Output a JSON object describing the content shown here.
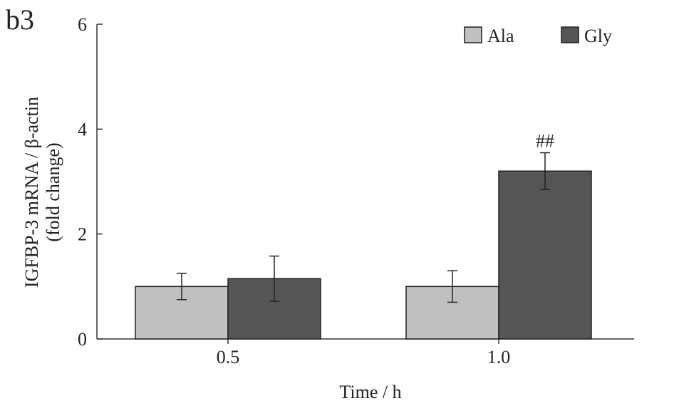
{
  "panel_label": "b3",
  "chart_data": {
    "type": "bar",
    "xlabel": "Time / h",
    "ylabel_line1": "IGFBP-3 mRNA / β-actin",
    "ylabel_line2": "(fold change)",
    "ylim": [
      0,
      6
    ],
    "yticks": [
      "0",
      "2",
      "4",
      "6"
    ],
    "categories": [
      "0.5",
      "1.0"
    ],
    "series": [
      {
        "name": "Ala",
        "color": "#c0c0c0",
        "values": [
          1.0,
          1.0
        ],
        "errors": [
          0.25,
          0.3
        ]
      },
      {
        "name": "Gly",
        "color": "#555555",
        "values": [
          1.15,
          3.2
        ],
        "errors": [
          0.43,
          0.35
        ]
      }
    ],
    "annotations": [
      {
        "category": "1.0",
        "series": "Gly",
        "text": "##"
      }
    ],
    "legend": "top-right"
  }
}
